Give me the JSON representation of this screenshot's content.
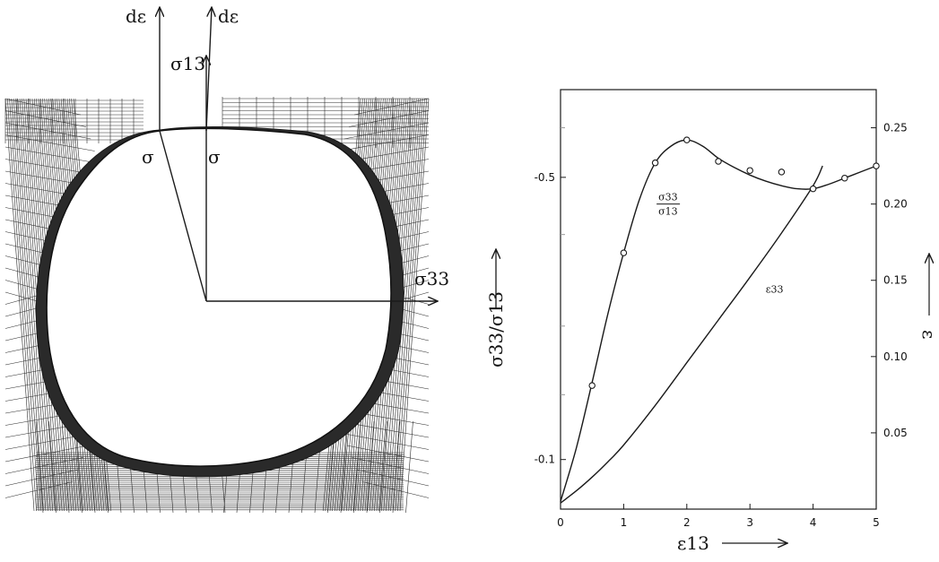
{
  "left_diagram": {
    "labels": {
      "d_eps_left": "dε",
      "d_eps_right": "dε",
      "sigma13": "σ13",
      "sigma_left": "σ",
      "sigma_right": "σ",
      "sigma33": "σ33"
    }
  },
  "chart_data": {
    "type": "line",
    "title": "",
    "xlabel": "ε13",
    "ylabel_left": "σ33/σ13",
    "ylabel_right": "ε",
    "xlim": [
      0,
      5
    ],
    "ylim_right": [
      0,
      0.275
    ],
    "grid": false,
    "x_ticks": [
      "0",
      "1",
      "2",
      "3",
      "4",
      "5"
    ],
    "left_ticks": [
      "-0.5",
      "-0.1"
    ],
    "right_ticks": [
      "0.25",
      "0.20",
      "0.15",
      "0.10",
      "0.05"
    ],
    "series": [
      {
        "name": "σ33/σ13",
        "marker": "circle",
        "points_x": [
          0.5,
          1.0,
          1.5,
          2.0,
          2.5,
          3.0,
          3.5,
          4.0,
          4.5,
          5.0
        ],
        "points_y": [
          0.081,
          0.168,
          0.227,
          0.242,
          0.228,
          0.222,
          0.221,
          0.21,
          0.217,
          0.225
        ],
        "curve_x": [
          0,
          0.25,
          0.5,
          0.75,
          1.0,
          1.25,
          1.5,
          1.75,
          2.0,
          2.25,
          2.5,
          2.75,
          3.0,
          3.25,
          3.5,
          3.75,
          4.0,
          4.25,
          4.5,
          4.75,
          5.0
        ],
        "curve_y": [
          0.005,
          0.04,
          0.083,
          0.128,
          0.168,
          0.203,
          0.227,
          0.238,
          0.242,
          0.238,
          0.23,
          0.224,
          0.219,
          0.215,
          0.212,
          0.21,
          0.21,
          0.213,
          0.217,
          0.221,
          0.225
        ]
      },
      {
        "name": "ε33",
        "curve_x": [
          0,
          0.25,
          0.5,
          0.75,
          1.0,
          1.5,
          2.0,
          2.5,
          3.0,
          3.5,
          4.0,
          4.15
        ],
        "curve_y": [
          0.004,
          0.012,
          0.021,
          0.031,
          0.042,
          0.068,
          0.096,
          0.124,
          0.152,
          0.181,
          0.212,
          0.225
        ]
      }
    ],
    "annotations": [
      {
        "text_num": "σ33",
        "text_den": "σ13",
        "x": 1.55,
        "y": 0.2
      },
      {
        "text": "ε33",
        "x": 3.25,
        "y": 0.142
      }
    ]
  }
}
